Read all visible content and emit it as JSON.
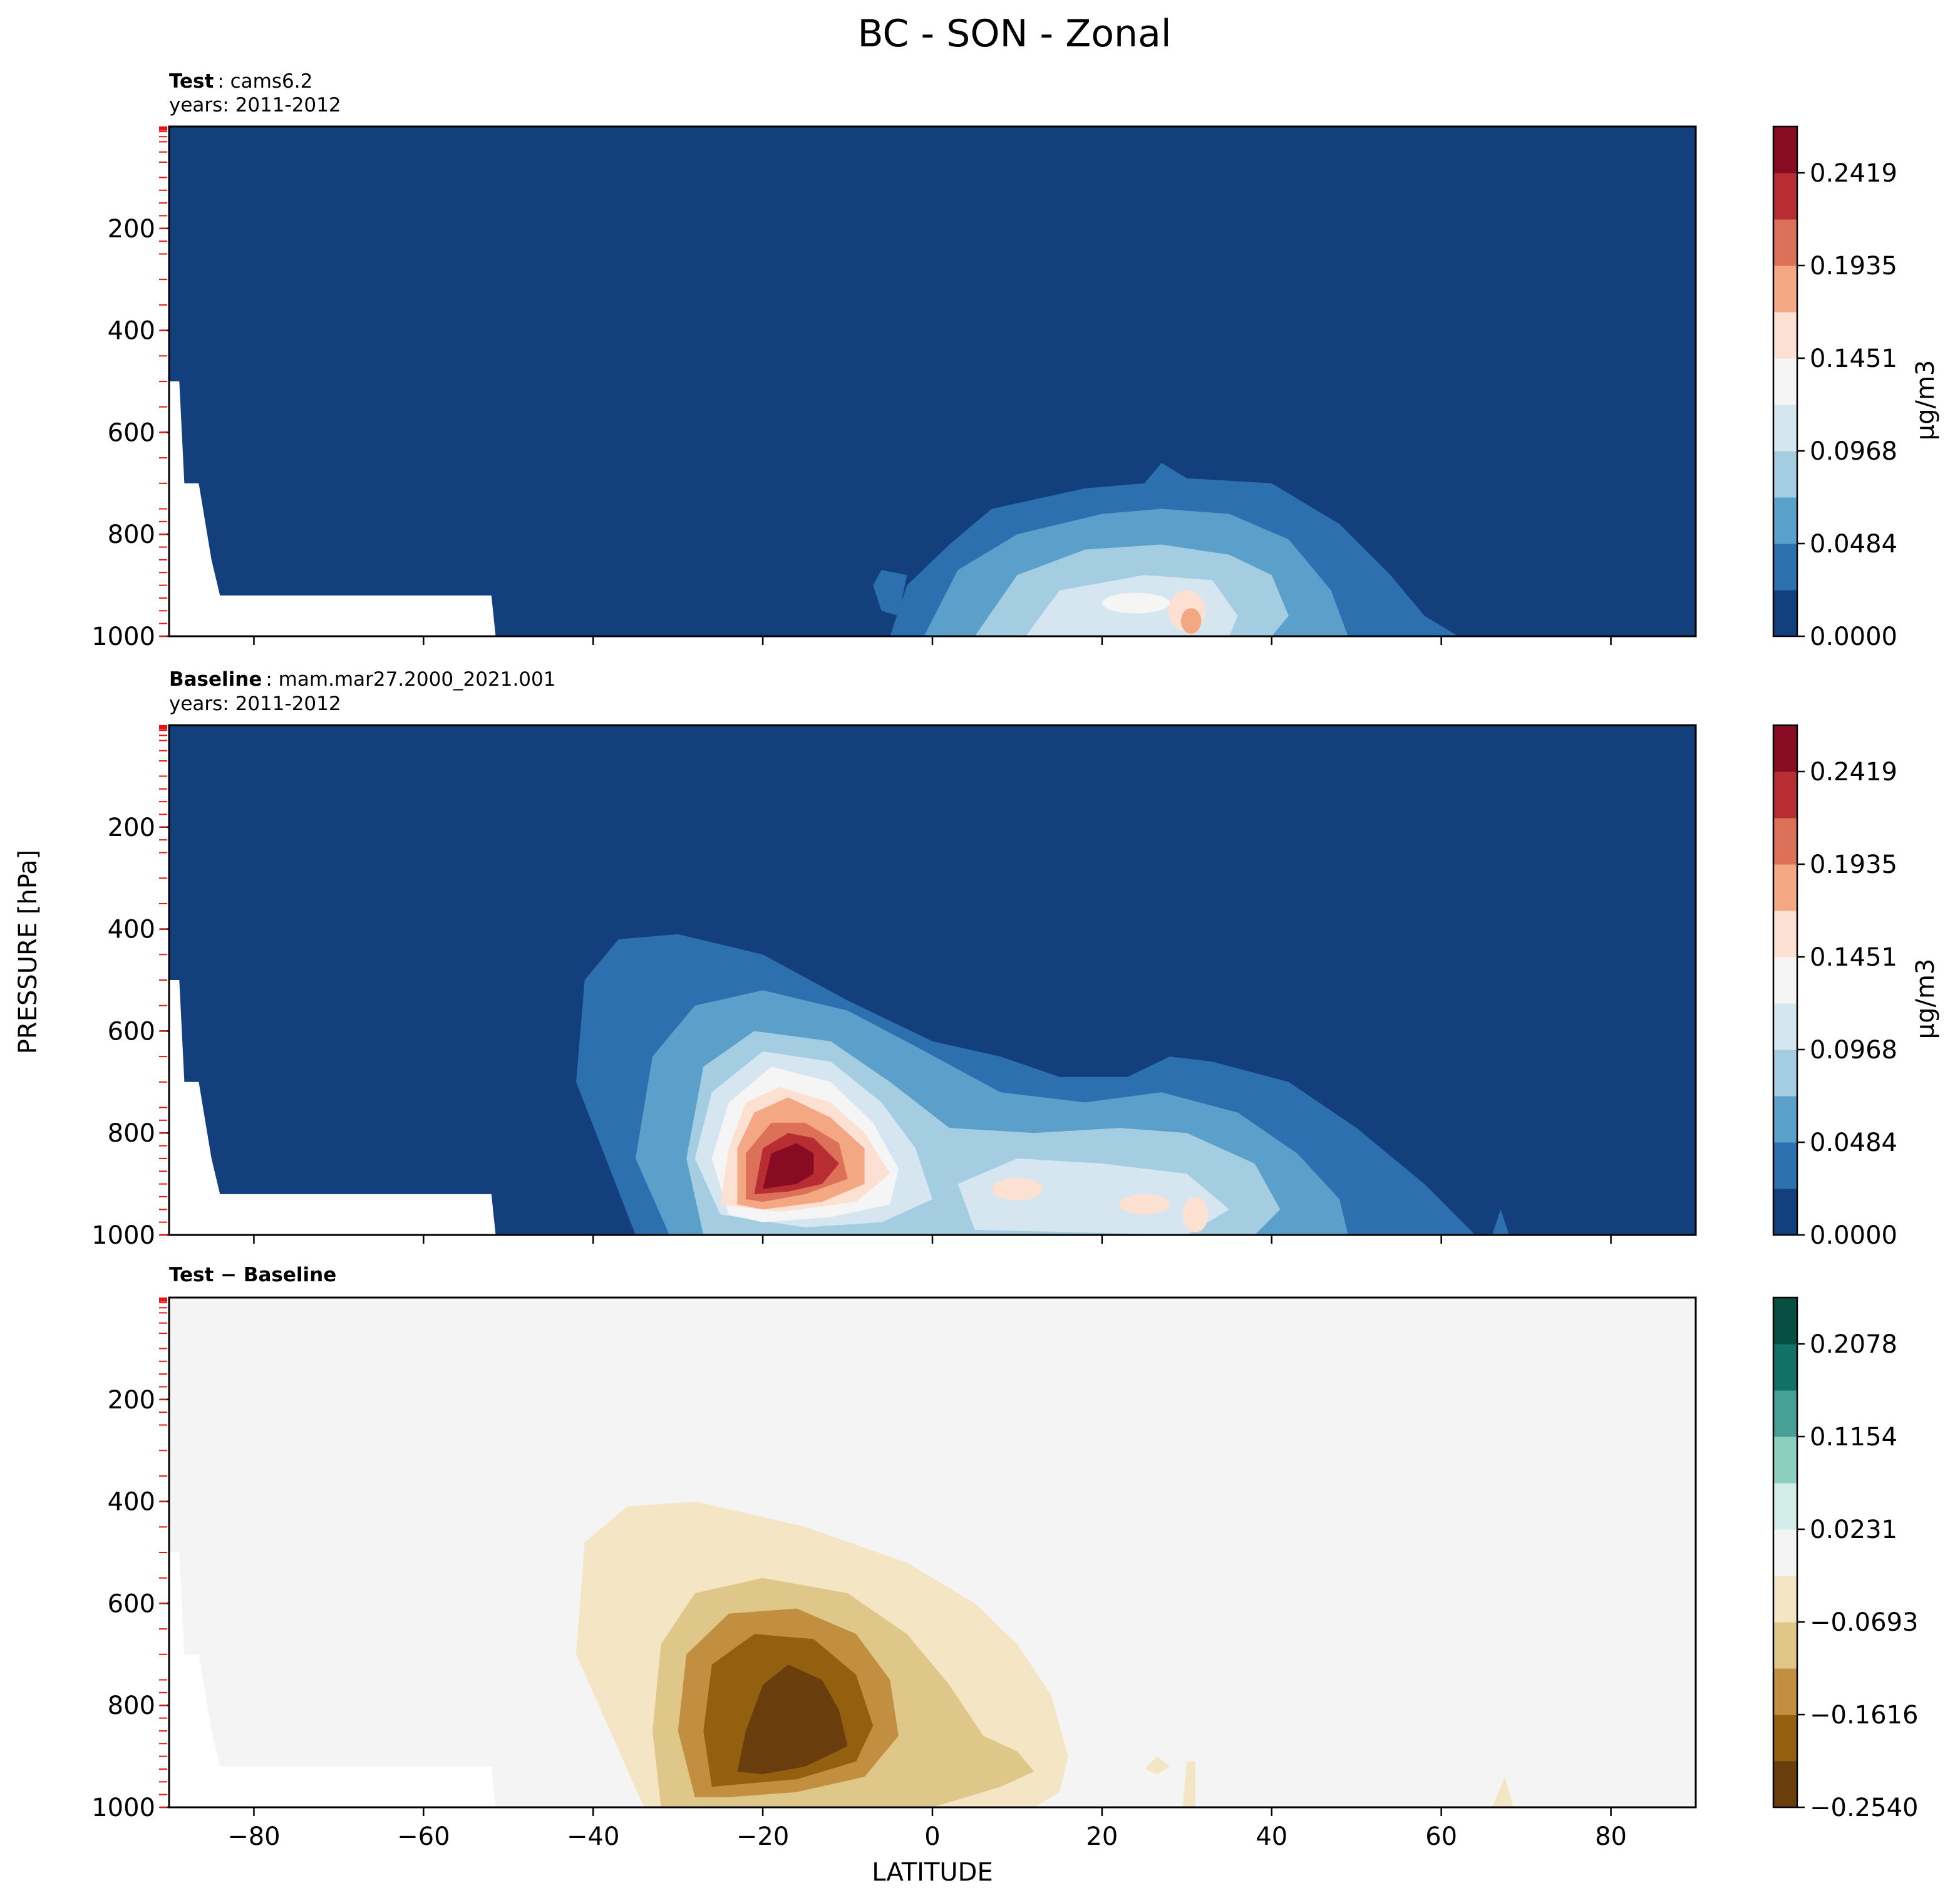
{
  "figure": {
    "title": "BC - SON - Zonal"
  },
  "colors": {
    "rdbu": [
      "#143f7d",
      "#2d70b0",
      "#5aa0cb",
      "#a5cde2",
      "#d6e6f1",
      "#f5f5f5",
      "#fce0d2",
      "#f4a783",
      "#dc7059",
      "#b82d32",
      "#870c23"
    ],
    "brbg": [
      "#6a3e0c",
      "#93600f",
      "#c28e3f",
      "#dfc78a",
      "#f4e6c4",
      "#f3f4f3",
      "#d3eee8",
      "#8ccfc0",
      "#46a095",
      "#117166",
      "#074f42"
    ],
    "white": "#ffffff"
  },
  "chart_data": [
    {
      "type": "heatmap",
      "panel": "test",
      "label_bold": "Test",
      "label": ": cams6.2",
      "years": "years: 2011-2012",
      "xlabel": "",
      "ylabel": "PRESSURE [hPa]",
      "xlim": [
        -90,
        90
      ],
      "ylim": [
        1000,
        0
      ],
      "yticks": [
        "200",
        "400",
        "600",
        "800",
        "1000"
      ],
      "colorbar": {
        "label": "μg/m3",
        "ticks": [
          "0.0000",
          "0.0484",
          "0.0968",
          "0.1451",
          "0.1935",
          "0.2419"
        ],
        "range": [
          0,
          0.266
        ]
      },
      "max_value_lat_pressure": [
        30,
        960
      ]
    },
    {
      "type": "heatmap",
      "panel": "baseline",
      "label_bold": "Baseline",
      "label": ": mam.mar27.2000_2021.001",
      "years": "years: 2011-2012",
      "xlabel": "",
      "ylabel": "PRESSURE [hPa]",
      "xlim": [
        -90,
        90
      ],
      "ylim": [
        1000,
        0
      ],
      "yticks": [
        "200",
        "400",
        "600",
        "800",
        "1000"
      ],
      "colorbar": {
        "label": "μg/m3",
        "ticks": [
          "0.0000",
          "0.0484",
          "0.0968",
          "0.1451",
          "0.1935",
          "0.2419"
        ],
        "range": [
          0,
          0.266
        ]
      },
      "max_value_lat_pressure": [
        -19,
        860
      ]
    },
    {
      "type": "heatmap",
      "panel": "difference",
      "label_bold": "Test − Baseline",
      "label": "",
      "years": "",
      "xlabel": "LATITUDE",
      "ylabel": "PRESSURE [hPa]",
      "xlim": [
        -90,
        90
      ],
      "ylim": [
        1000,
        0
      ],
      "xticks": [
        "−80",
        "−60",
        "−40",
        "−20",
        "0",
        "20",
        "40",
        "60",
        "80"
      ],
      "yticks": [
        "200",
        "400",
        "600",
        "800",
        "1000"
      ],
      "colorbar": {
        "label": "",
        "ticks": [
          "0.2078",
          "0.1154",
          "0.0231",
          "−0.0693",
          "−0.1616",
          "−0.2540"
        ],
        "range": [
          -0.254,
          0.254
        ]
      },
      "min_value_lat_pressure": [
        -18,
        860
      ]
    }
  ],
  "axes": {
    "shared_ylabel": "PRESSURE [hPa]",
    "shared_xlabel": "LATITUDE"
  }
}
